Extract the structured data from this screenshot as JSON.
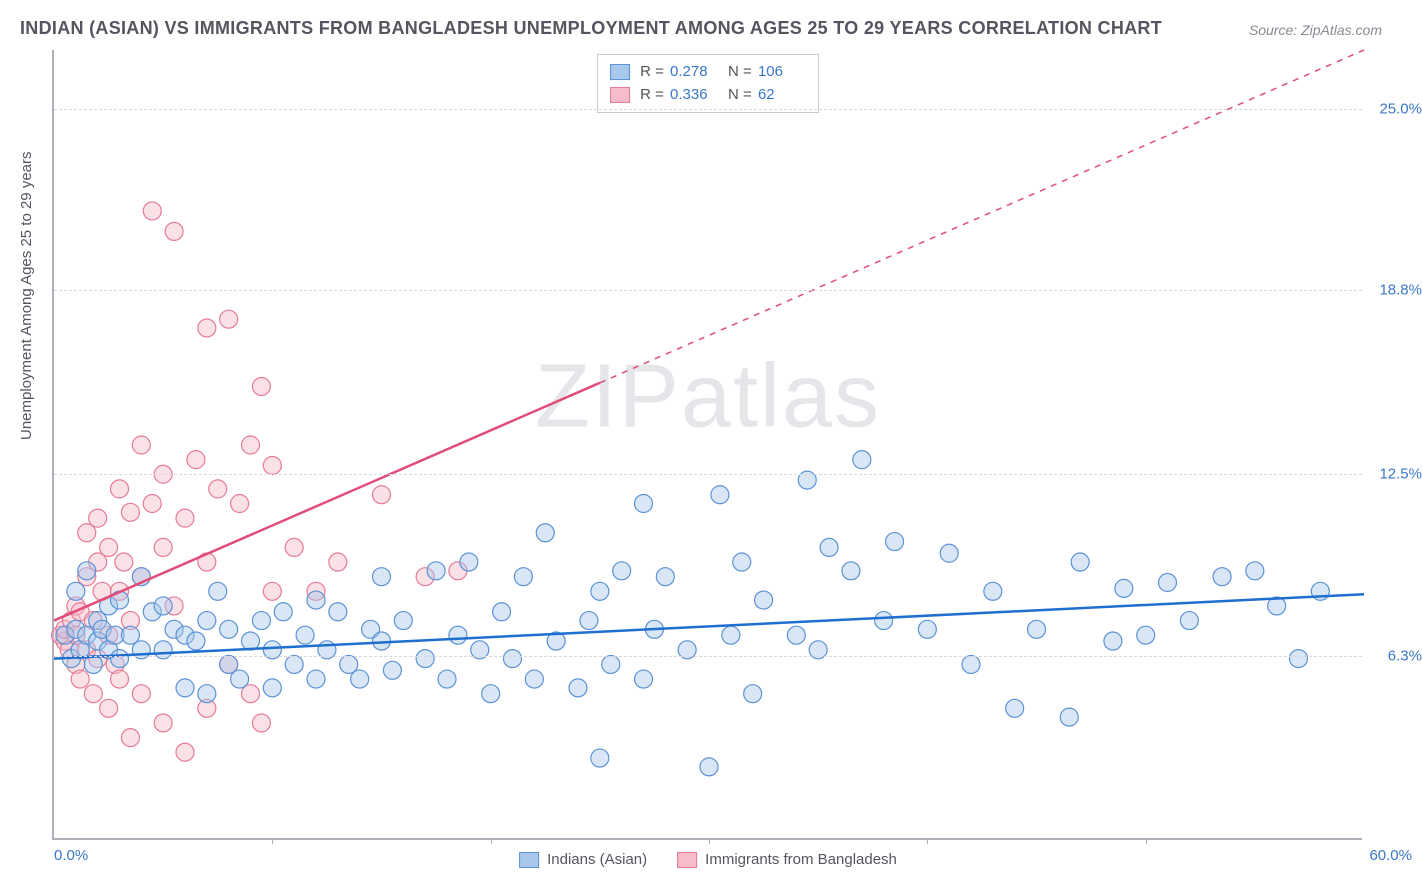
{
  "title": "INDIAN (ASIAN) VS IMMIGRANTS FROM BANGLADESH UNEMPLOYMENT AMONG AGES 25 TO 29 YEARS CORRELATION CHART",
  "source": "Source: ZipAtlas.com",
  "watermark": "ZIPatlas",
  "chart": {
    "type": "scatter",
    "ylabel": "Unemployment Among Ages 25 to 29 years",
    "xlim": [
      0,
      60
    ],
    "ylim": [
      0,
      27
    ],
    "x_ticks_labels": {
      "min": "0.0%",
      "max": "60.0%"
    },
    "y_ticks": [
      {
        "value": 6.3,
        "label": "6.3%"
      },
      {
        "value": 12.5,
        "label": "12.5%"
      },
      {
        "value": 18.8,
        "label": "18.8%"
      },
      {
        "value": 25.0,
        "label": "25.0%"
      }
    ],
    "x_tick_marks": [
      10,
      20,
      30,
      40,
      50
    ],
    "background_color": "#ffffff",
    "grid_color": "#d8d8de",
    "axis_color": "#b0b0b8",
    "marker_radius": 9,
    "marker_opacity": 0.45,
    "line_width": 2.5,
    "series": [
      {
        "name": "Indians (Asian)",
        "color_fill": "#a8c7ec",
        "color_stroke": "#5b93d6",
        "line_color": "#1f6fd0",
        "R": "0.278",
        "N": "106",
        "trend": {
          "x1": 0,
          "y1": 6.2,
          "x2": 60,
          "y2": 8.4,
          "dash_from_x": null
        },
        "points": [
          [
            0.5,
            7.0
          ],
          [
            0.8,
            6.2
          ],
          [
            1.0,
            7.2
          ],
          [
            1.0,
            8.5
          ],
          [
            1.2,
            6.5
          ],
          [
            1.5,
            7.0
          ],
          [
            1.5,
            9.2
          ],
          [
            1.8,
            6.0
          ],
          [
            2.0,
            7.5
          ],
          [
            2.0,
            6.8
          ],
          [
            2.2,
            7.2
          ],
          [
            2.5,
            6.5
          ],
          [
            2.5,
            8.0
          ],
          [
            2.8,
            7.0
          ],
          [
            3.0,
            6.2
          ],
          [
            3.0,
            8.2
          ],
          [
            3.5,
            7.0
          ],
          [
            4.0,
            6.5
          ],
          [
            4.0,
            9.0
          ],
          [
            4.5,
            7.8
          ],
          [
            5.0,
            6.5
          ],
          [
            5.0,
            8.0
          ],
          [
            5.5,
            7.2
          ],
          [
            6.0,
            5.2
          ],
          [
            6.0,
            7.0
          ],
          [
            6.5,
            6.8
          ],
          [
            7.0,
            5.0
          ],
          [
            7.0,
            7.5
          ],
          [
            7.5,
            8.5
          ],
          [
            8.0,
            6.0
          ],
          [
            8.0,
            7.2
          ],
          [
            8.5,
            5.5
          ],
          [
            9.0,
            6.8
          ],
          [
            9.5,
            7.5
          ],
          [
            10.0,
            5.2
          ],
          [
            10.0,
            6.5
          ],
          [
            10.5,
            7.8
          ],
          [
            11.0,
            6.0
          ],
          [
            11.5,
            7.0
          ],
          [
            12.0,
            5.5
          ],
          [
            12.0,
            8.2
          ],
          [
            12.5,
            6.5
          ],
          [
            13.0,
            7.8
          ],
          [
            13.5,
            6.0
          ],
          [
            14.0,
            5.5
          ],
          [
            14.5,
            7.2
          ],
          [
            15.0,
            6.8
          ],
          [
            15.0,
            9.0
          ],
          [
            15.5,
            5.8
          ],
          [
            16.0,
            7.5
          ],
          [
            17.0,
            6.2
          ],
          [
            17.5,
            9.2
          ],
          [
            18.0,
            5.5
          ],
          [
            18.5,
            7.0
          ],
          [
            19.0,
            9.5
          ],
          [
            19.5,
            6.5
          ],
          [
            20.0,
            5.0
          ],
          [
            20.5,
            7.8
          ],
          [
            21.0,
            6.2
          ],
          [
            21.5,
            9.0
          ],
          [
            22.0,
            5.5
          ],
          [
            22.5,
            10.5
          ],
          [
            23.0,
            6.8
          ],
          [
            24.0,
            5.2
          ],
          [
            24.5,
            7.5
          ],
          [
            25.0,
            2.8
          ],
          [
            25.0,
            8.5
          ],
          [
            25.5,
            6.0
          ],
          [
            26.0,
            9.2
          ],
          [
            27.0,
            11.5
          ],
          [
            27.0,
            5.5
          ],
          [
            27.5,
            7.2
          ],
          [
            28.0,
            9.0
          ],
          [
            29.0,
            6.5
          ],
          [
            30.0,
            2.5
          ],
          [
            30.5,
            11.8
          ],
          [
            31.0,
            7.0
          ],
          [
            31.5,
            9.5
          ],
          [
            32.0,
            5.0
          ],
          [
            32.5,
            8.2
          ],
          [
            34.0,
            7.0
          ],
          [
            34.5,
            12.3
          ],
          [
            35.0,
            6.5
          ],
          [
            35.5,
            10.0
          ],
          [
            36.5,
            9.2
          ],
          [
            37.0,
            13.0
          ],
          [
            38.0,
            7.5
          ],
          [
            38.5,
            10.2
          ],
          [
            40.0,
            7.2
          ],
          [
            41.0,
            9.8
          ],
          [
            42.0,
            6.0
          ],
          [
            43.0,
            8.5
          ],
          [
            44.0,
            4.5
          ],
          [
            45.0,
            7.2
          ],
          [
            46.5,
            4.2
          ],
          [
            47.0,
            9.5
          ],
          [
            48.5,
            6.8
          ],
          [
            49.0,
            8.6
          ],
          [
            50.0,
            7.0
          ],
          [
            51.0,
            8.8
          ],
          [
            52.0,
            7.5
          ],
          [
            53.5,
            9.0
          ],
          [
            55.0,
            9.2
          ],
          [
            56.0,
            8.0
          ],
          [
            57.0,
            6.2
          ],
          [
            58.0,
            8.5
          ]
        ]
      },
      {
        "name": "Immigrants from Bangladesh",
        "color_fill": "#f5bcc9",
        "color_stroke": "#e67b96",
        "line_color": "#e04d78",
        "R": "0.336",
        "N": "62",
        "trend": {
          "x1": 0,
          "y1": 7.5,
          "x2": 60,
          "y2": 27.0,
          "dash_from_x": 25
        },
        "points": [
          [
            0.3,
            7.0
          ],
          [
            0.5,
            6.8
          ],
          [
            0.5,
            7.2
          ],
          [
            0.7,
            6.5
          ],
          [
            0.8,
            7.5
          ],
          [
            1.0,
            6.0
          ],
          [
            1.0,
            7.0
          ],
          [
            1.0,
            8.0
          ],
          [
            1.2,
            5.5
          ],
          [
            1.2,
            7.8
          ],
          [
            1.5,
            6.5
          ],
          [
            1.5,
            9.0
          ],
          [
            1.5,
            10.5
          ],
          [
            1.8,
            5.0
          ],
          [
            1.8,
            7.5
          ],
          [
            2.0,
            6.2
          ],
          [
            2.0,
            9.5
          ],
          [
            2.0,
            11.0
          ],
          [
            2.2,
            8.5
          ],
          [
            2.5,
            4.5
          ],
          [
            2.5,
            7.0
          ],
          [
            2.5,
            10.0
          ],
          [
            2.8,
            6.0
          ],
          [
            3.0,
            5.5
          ],
          [
            3.0,
            8.5
          ],
          [
            3.0,
            12.0
          ],
          [
            3.2,
            9.5
          ],
          [
            3.5,
            3.5
          ],
          [
            3.5,
            7.5
          ],
          [
            3.5,
            11.2
          ],
          [
            4.0,
            5.0
          ],
          [
            4.0,
            9.0
          ],
          [
            4.0,
            13.5
          ],
          [
            4.5,
            11.5
          ],
          [
            4.5,
            21.5
          ],
          [
            5.0,
            4.0
          ],
          [
            5.0,
            10.0
          ],
          [
            5.0,
            12.5
          ],
          [
            5.5,
            20.8
          ],
          [
            5.5,
            8.0
          ],
          [
            6.0,
            3.0
          ],
          [
            6.0,
            11.0
          ],
          [
            6.5,
            13.0
          ],
          [
            7.0,
            4.5
          ],
          [
            7.0,
            9.5
          ],
          [
            7.0,
            17.5
          ],
          [
            7.5,
            12.0
          ],
          [
            8.0,
            6.0
          ],
          [
            8.0,
            17.8
          ],
          [
            8.5,
            11.5
          ],
          [
            9.0,
            5.0
          ],
          [
            9.0,
            13.5
          ],
          [
            9.5,
            4.0
          ],
          [
            9.5,
            15.5
          ],
          [
            10.0,
            8.5
          ],
          [
            10.0,
            12.8
          ],
          [
            11.0,
            10.0
          ],
          [
            12.0,
            8.5
          ],
          [
            13.0,
            9.5
          ],
          [
            15.0,
            11.8
          ],
          [
            17.0,
            9.0
          ],
          [
            18.5,
            9.2
          ]
        ]
      }
    ],
    "legend_bottom": [
      {
        "label": "Indians (Asian)",
        "fill": "#a8c7ec",
        "stroke": "#5b93d6"
      },
      {
        "label": "Immigrants from Bangladesh",
        "fill": "#f5bcc9",
        "stroke": "#e67b96"
      }
    ]
  }
}
